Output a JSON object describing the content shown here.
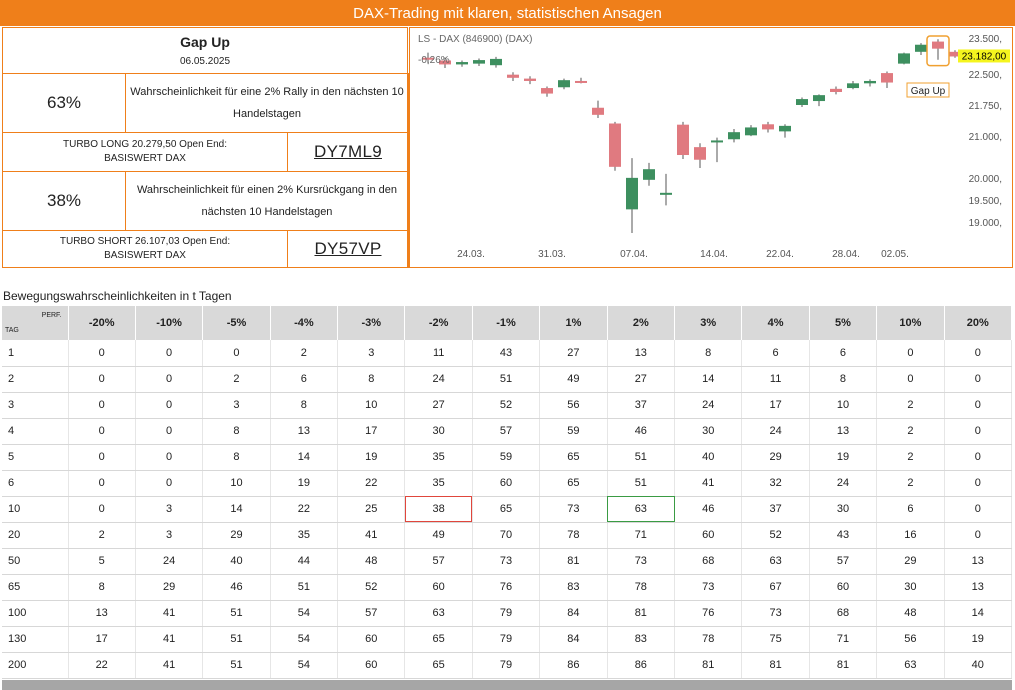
{
  "header": {
    "title": "DAX-Trading mit klaren, statistischen Ansagen"
  },
  "signal": {
    "name": "Gap Up",
    "date": "06.05.2025"
  },
  "long": {
    "probability": "63%",
    "text": "Wahrscheinlichkeit für eine 2% Rally in den nächsten 10 Handelstagen",
    "turbo_line1": "TURBO LONG 20.279,50 Open End:",
    "turbo_line2": "BASISWERT DAX",
    "wkn": "DY7ML9"
  },
  "short": {
    "probability": "38%",
    "text": "Wahrscheinlichkeit für einen 2% Kursrückgang in den nächsten 10 Handelstagen",
    "turbo_line1": "TURBO SHORT 26.107,03 Open End:",
    "turbo_line2": "BASISWERT DAX",
    "wkn": "DY57VP"
  },
  "chart_data": {
    "type": "candlestick",
    "instrument_label": "LS - DAX (846900) (DAX)",
    "change_label": "-0,26%",
    "last_price": "23.182,00",
    "annotation": "Gap Up",
    "colors": {
      "up": "#3d8f5f",
      "down": "#e07a80",
      "annotation": "#f0a030",
      "last_price_bg": "#f5f51e"
    },
    "x_labels": [
      "24.03.",
      "31.03.",
      "07.04.",
      "14.04.",
      "22.04.",
      "28.04.",
      "02.05."
    ],
    "y_labels": [
      "23.500,",
      "22.500,",
      "21.750,",
      "21.000,",
      "20.000,",
      "19.500,",
      "19.000,"
    ],
    "candles": [
      {
        "o": 23150,
        "h": 23280,
        "l": 23000,
        "c": 23100
      },
      {
        "o": 23080,
        "h": 23160,
        "l": 22890,
        "c": 22980
      },
      {
        "o": 22980,
        "h": 23080,
        "l": 22920,
        "c": 23040
      },
      {
        "o": 23000,
        "h": 23130,
        "l": 22940,
        "c": 23090
      },
      {
        "o": 22960,
        "h": 23170,
        "l": 22900,
        "c": 23120
      },
      {
        "o": 22720,
        "h": 22780,
        "l": 22560,
        "c": 22640
      },
      {
        "o": 22620,
        "h": 22680,
        "l": 22480,
        "c": 22560
      },
      {
        "o": 22380,
        "h": 22420,
        "l": 22160,
        "c": 22240
      },
      {
        "o": 22400,
        "h": 22620,
        "l": 22350,
        "c": 22580
      },
      {
        "o": 22560,
        "h": 22640,
        "l": 22500,
        "c": 22520
      },
      {
        "o": 21880,
        "h": 22060,
        "l": 21620,
        "c": 21700
      },
      {
        "o": 21480,
        "h": 21520,
        "l": 20280,
        "c": 20380
      },
      {
        "o": 19300,
        "h": 20600,
        "l": 18700,
        "c": 20100
      },
      {
        "o": 20050,
        "h": 20480,
        "l": 19900,
        "c": 20320
      },
      {
        "o": 19690,
        "h": 20200,
        "l": 19400,
        "c": 19720
      },
      {
        "o": 21450,
        "h": 21520,
        "l": 20580,
        "c": 20680
      },
      {
        "o": 20880,
        "h": 20980,
        "l": 20350,
        "c": 20560
      },
      {
        "o": 21000,
        "h": 21120,
        "l": 20500,
        "c": 21050
      },
      {
        "o": 21080,
        "h": 21340,
        "l": 21000,
        "c": 21260
      },
      {
        "o": 21180,
        "h": 21440,
        "l": 21160,
        "c": 21380
      },
      {
        "o": 21460,
        "h": 21520,
        "l": 21250,
        "c": 21330
      },
      {
        "o": 21280,
        "h": 21460,
        "l": 21120,
        "c": 21420
      },
      {
        "o": 21950,
        "h": 22140,
        "l": 21900,
        "c": 22100
      },
      {
        "o": 22050,
        "h": 22220,
        "l": 21920,
        "c": 22200
      },
      {
        "o": 22360,
        "h": 22420,
        "l": 22220,
        "c": 22280
      },
      {
        "o": 22380,
        "h": 22560,
        "l": 22350,
        "c": 22500
      },
      {
        "o": 22500,
        "h": 22600,
        "l": 22420,
        "c": 22560
      },
      {
        "o": 22760,
        "h": 22800,
        "l": 22380,
        "c": 22520
      },
      {
        "o": 23000,
        "h": 23280,
        "l": 22980,
        "c": 23260
      },
      {
        "o": 23300,
        "h": 23520,
        "l": 23220,
        "c": 23480
      },
      {
        "o": 23560,
        "h": 23620,
        "l": 23100,
        "c": 23380
      },
      {
        "o": 23300,
        "h": 23340,
        "l": 23150,
        "c": 23182
      }
    ]
  },
  "table": {
    "title": "Bewegungswahrscheinlichkeiten in t Tagen",
    "corner_top": "PERF.",
    "corner_bottom": "TAG",
    "columns": [
      "-20%",
      "-10%",
      "-5%",
      "-4%",
      "-3%",
      "-2%",
      "-1%",
      "1%",
      "2%",
      "3%",
      "4%",
      "5%",
      "10%",
      "20%"
    ],
    "rows": [
      {
        "day": "1",
        "values": [
          "0",
          "0",
          "0",
          "2",
          "3",
          "11",
          "43",
          "27",
          "13",
          "8",
          "6",
          "6",
          "0",
          "0"
        ]
      },
      {
        "day": "2",
        "values": [
          "0",
          "0",
          "2",
          "6",
          "8",
          "24",
          "51",
          "49",
          "27",
          "14",
          "11",
          "8",
          "0",
          "0"
        ]
      },
      {
        "day": "3",
        "values": [
          "0",
          "0",
          "3",
          "8",
          "10",
          "27",
          "52",
          "56",
          "37",
          "24",
          "17",
          "10",
          "2",
          "0"
        ]
      },
      {
        "day": "4",
        "values": [
          "0",
          "0",
          "8",
          "13",
          "17",
          "30",
          "57",
          "59",
          "46",
          "30",
          "24",
          "13",
          "2",
          "0"
        ]
      },
      {
        "day": "5",
        "values": [
          "0",
          "0",
          "8",
          "14",
          "19",
          "35",
          "59",
          "65",
          "51",
          "40",
          "29",
          "19",
          "2",
          "0"
        ]
      },
      {
        "day": "6",
        "values": [
          "0",
          "0",
          "10",
          "19",
          "22",
          "35",
          "60",
          "65",
          "51",
          "41",
          "32",
          "24",
          "2",
          "0"
        ]
      },
      {
        "day": "10",
        "values": [
          "0",
          "3",
          "14",
          "22",
          "25",
          "38",
          "65",
          "73",
          "63",
          "46",
          "37",
          "30",
          "6",
          "0"
        ]
      },
      {
        "day": "20",
        "values": [
          "2",
          "3",
          "29",
          "35",
          "41",
          "49",
          "70",
          "78",
          "71",
          "60",
          "52",
          "43",
          "16",
          "0"
        ]
      },
      {
        "day": "50",
        "values": [
          "5",
          "24",
          "40",
          "44",
          "48",
          "57",
          "73",
          "81",
          "73",
          "68",
          "63",
          "57",
          "29",
          "13"
        ]
      },
      {
        "day": "65",
        "values": [
          "8",
          "29",
          "46",
          "51",
          "52",
          "60",
          "76",
          "83",
          "78",
          "73",
          "67",
          "60",
          "30",
          "13"
        ]
      },
      {
        "day": "100",
        "values": [
          "13",
          "41",
          "51",
          "54",
          "57",
          "63",
          "79",
          "84",
          "81",
          "76",
          "73",
          "68",
          "48",
          "14"
        ]
      },
      {
        "day": "130",
        "values": [
          "17",
          "41",
          "51",
          "54",
          "60",
          "65",
          "79",
          "84",
          "83",
          "78",
          "75",
          "71",
          "56",
          "19"
        ]
      },
      {
        "day": "200",
        "values": [
          "22",
          "41",
          "51",
          "54",
          "60",
          "65",
          "79",
          "86",
          "86",
          "81",
          "81",
          "81",
          "63",
          "40"
        ]
      }
    ],
    "highlights": {
      "red": {
        "row": 6,
        "col": 5
      },
      "green": {
        "row": 6,
        "col": 8
      }
    }
  }
}
